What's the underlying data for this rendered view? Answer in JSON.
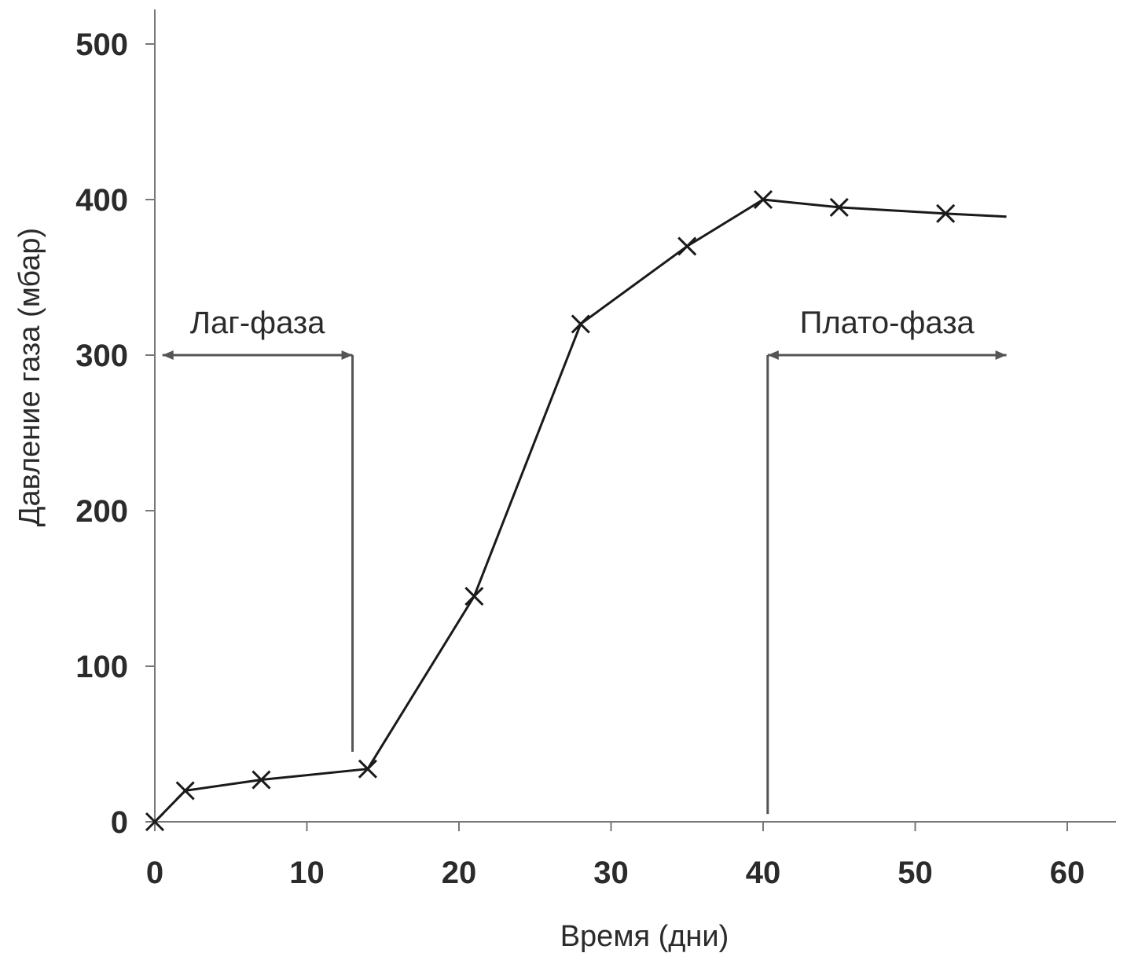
{
  "chart_data": {
    "type": "line",
    "title": "",
    "xlabel": "Время (дни)",
    "ylabel": "Давление газа (мбар)",
    "xlim": [
      0,
      63
    ],
    "ylim": [
      0,
      500
    ],
    "xticks": [
      0,
      10,
      20,
      30,
      40,
      50,
      60
    ],
    "yticks": [
      0,
      100,
      200,
      300,
      400,
      500
    ],
    "grid": false,
    "colors": {
      "line": "#1a1a1a",
      "axis": "#777777",
      "text": "#2b2b2b",
      "annotation": "#555555"
    },
    "marker": "x",
    "series": [
      {
        "x": [
          0,
          2,
          7,
          14,
          21,
          28,
          35,
          40,
          45,
          52
        ],
        "y": [
          0,
          20,
          27,
          34,
          145,
          320,
          370,
          400,
          395,
          391
        ],
        "line_end": {
          "x": 56,
          "y": 389
        }
      }
    ],
    "annotations": [
      {
        "label": "Лаг-фаза",
        "arrow_from_x": 0.5,
        "arrow_to_x": 13,
        "arrow_y": 300,
        "drop_x": 13,
        "drop_to_y": 45,
        "arrowheads": "both"
      },
      {
        "label": "Плато-фаза",
        "arrow_from_x": 40.3,
        "arrow_to_x": 56,
        "arrow_y": 300,
        "drop_x": 40.3,
        "drop_to_y": 5,
        "arrowheads": "both"
      }
    ]
  }
}
